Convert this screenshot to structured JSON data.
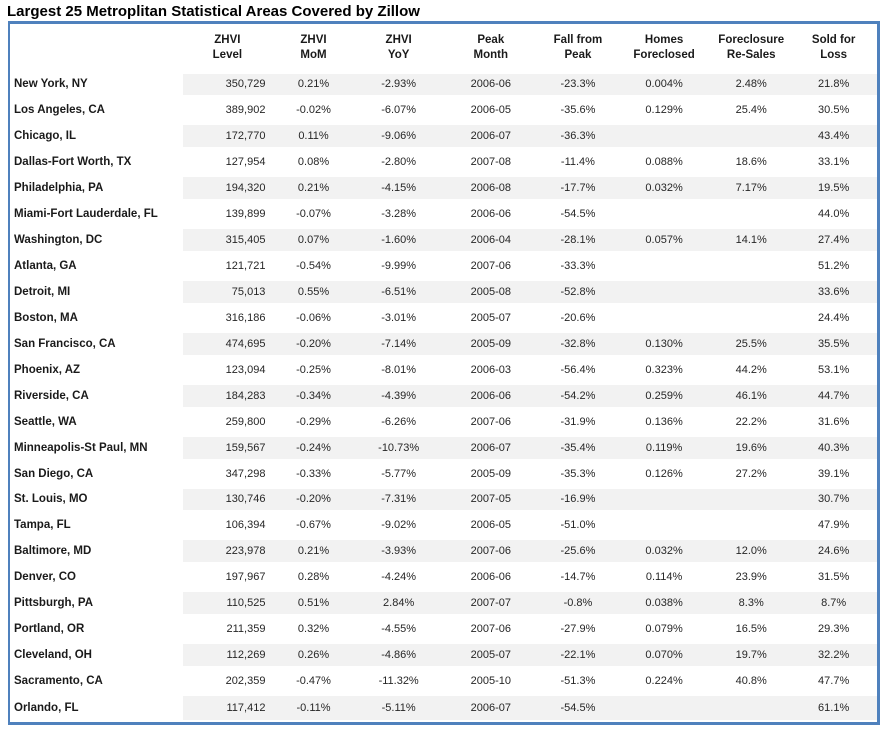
{
  "title": "Largest 25 Metroplitan Statistical Areas Covered by Zillow",
  "colors": {
    "border": "#4f81bd",
    "stripe": "#f2f2f2",
    "title_text": "#000000",
    "header_text": "#1a1a1a",
    "data_text": "#262626"
  },
  "chart_data": {
    "type": "table",
    "title": "Largest 25 Metroplitan Statistical Areas Covered by Zillow",
    "columns": [
      {
        "key": "metro",
        "label_lines": [
          ""
        ]
      },
      {
        "key": "zhvi_level",
        "label_lines": [
          "ZHVI",
          "Level"
        ]
      },
      {
        "key": "zhvi_mom",
        "label_lines": [
          "ZHVI",
          "MoM"
        ]
      },
      {
        "key": "zhvi_yoy",
        "label_lines": [
          "ZHVI",
          "YoY"
        ]
      },
      {
        "key": "peak_month",
        "label_lines": [
          "Peak",
          "Month"
        ]
      },
      {
        "key": "fall_from_peak",
        "label_lines": [
          "Fall from Peak"
        ]
      },
      {
        "key": "homes_foreclosed",
        "label_lines": [
          "Homes",
          "Foreclosed"
        ]
      },
      {
        "key": "foreclosure_resales",
        "label_lines": [
          "Foreclosure",
          "Re-Sales"
        ]
      },
      {
        "key": "sold_for_loss",
        "label_lines": [
          "Sold for",
          "Loss"
        ]
      }
    ],
    "rows": [
      {
        "metro": "New York, NY",
        "zhvi_level": "350,729",
        "zhvi_mom": "0.21%",
        "zhvi_yoy": "-2.93%",
        "peak_month": "2006-06",
        "fall_from_peak": "-23.3%",
        "homes_foreclosed": "0.004%",
        "foreclosure_resales": "2.48%",
        "sold_for_loss": "21.8%"
      },
      {
        "metro": "Los Angeles, CA",
        "zhvi_level": "389,902",
        "zhvi_mom": "-0.02%",
        "zhvi_yoy": "-6.07%",
        "peak_month": "2006-05",
        "fall_from_peak": "-35.6%",
        "homes_foreclosed": "0.129%",
        "foreclosure_resales": "25.4%",
        "sold_for_loss": "30.5%"
      },
      {
        "metro": "Chicago, IL",
        "zhvi_level": "172,770",
        "zhvi_mom": "0.11%",
        "zhvi_yoy": "-9.06%",
        "peak_month": "2006-07",
        "fall_from_peak": "-36.3%",
        "homes_foreclosed": "",
        "foreclosure_resales": "",
        "sold_for_loss": "43.4%"
      },
      {
        "metro": "Dallas-Fort Worth, TX",
        "zhvi_level": "127,954",
        "zhvi_mom": "0.08%",
        "zhvi_yoy": "-2.80%",
        "peak_month": "2007-08",
        "fall_from_peak": "-11.4%",
        "homes_foreclosed": "0.088%",
        "foreclosure_resales": "18.6%",
        "sold_for_loss": "33.1%"
      },
      {
        "metro": "Philadelphia, PA",
        "zhvi_level": "194,320",
        "zhvi_mom": "0.21%",
        "zhvi_yoy": "-4.15%",
        "peak_month": "2006-08",
        "fall_from_peak": "-17.7%",
        "homes_foreclosed": "0.032%",
        "foreclosure_resales": "7.17%",
        "sold_for_loss": "19.5%"
      },
      {
        "metro": "Miami-Fort Lauderdale, FL",
        "zhvi_level": "139,899",
        "zhvi_mom": "-0.07%",
        "zhvi_yoy": "-3.28%",
        "peak_month": "2006-06",
        "fall_from_peak": "-54.5%",
        "homes_foreclosed": "",
        "foreclosure_resales": "",
        "sold_for_loss": "44.0%"
      },
      {
        "metro": "Washington, DC",
        "zhvi_level": "315,405",
        "zhvi_mom": "0.07%",
        "zhvi_yoy": "-1.60%",
        "peak_month": "2006-04",
        "fall_from_peak": "-28.1%",
        "homes_foreclosed": "0.057%",
        "foreclosure_resales": "14.1%",
        "sold_for_loss": "27.4%"
      },
      {
        "metro": "Atlanta, GA",
        "zhvi_level": "121,721",
        "zhvi_mom": "-0.54%",
        "zhvi_yoy": "-9.99%",
        "peak_month": "2007-06",
        "fall_from_peak": "-33.3%",
        "homes_foreclosed": "",
        "foreclosure_resales": "",
        "sold_for_loss": "51.2%"
      },
      {
        "metro": "Detroit, MI",
        "zhvi_level": "75,013",
        "zhvi_mom": "0.55%",
        "zhvi_yoy": "-6.51%",
        "peak_month": "2005-08",
        "fall_from_peak": "-52.8%",
        "homes_foreclosed": "",
        "foreclosure_resales": "",
        "sold_for_loss": "33.6%"
      },
      {
        "metro": "Boston, MA",
        "zhvi_level": "316,186",
        "zhvi_mom": "-0.06%",
        "zhvi_yoy": "-3.01%",
        "peak_month": "2005-07",
        "fall_from_peak": "-20.6%",
        "homes_foreclosed": "",
        "foreclosure_resales": "",
        "sold_for_loss": "24.4%"
      },
      {
        "metro": "San Francisco, CA",
        "zhvi_level": "474,695",
        "zhvi_mom": "-0.20%",
        "zhvi_yoy": "-7.14%",
        "peak_month": "2005-09",
        "fall_from_peak": "-32.8%",
        "homes_foreclosed": "0.130%",
        "foreclosure_resales": "25.5%",
        "sold_for_loss": "35.5%"
      },
      {
        "metro": "Phoenix, AZ",
        "zhvi_level": "123,094",
        "zhvi_mom": "-0.25%",
        "zhvi_yoy": "-8.01%",
        "peak_month": "2006-03",
        "fall_from_peak": "-56.4%",
        "homes_foreclosed": "0.323%",
        "foreclosure_resales": "44.2%",
        "sold_for_loss": "53.1%"
      },
      {
        "metro": "Riverside, CA",
        "zhvi_level": "184,283",
        "zhvi_mom": "-0.34%",
        "zhvi_yoy": "-4.39%",
        "peak_month": "2006-06",
        "fall_from_peak": "-54.2%",
        "homes_foreclosed": "0.259%",
        "foreclosure_resales": "46.1%",
        "sold_for_loss": "44.7%"
      },
      {
        "metro": "Seattle, WA",
        "zhvi_level": "259,800",
        "zhvi_mom": "-0.29%",
        "zhvi_yoy": "-6.26%",
        "peak_month": "2007-06",
        "fall_from_peak": "-31.9%",
        "homes_foreclosed": "0.136%",
        "foreclosure_resales": "22.2%",
        "sold_for_loss": "31.6%"
      },
      {
        "metro": "Minneapolis-St Paul, MN",
        "zhvi_level": "159,567",
        "zhvi_mom": "-0.24%",
        "zhvi_yoy": "-10.73%",
        "peak_month": "2006-07",
        "fall_from_peak": "-35.4%",
        "homes_foreclosed": "0.119%",
        "foreclosure_resales": "19.6%",
        "sold_for_loss": "40.3%"
      },
      {
        "metro": "San Diego, CA",
        "zhvi_level": "347,298",
        "zhvi_mom": "-0.33%",
        "zhvi_yoy": "-5.77%",
        "peak_month": "2005-09",
        "fall_from_peak": "-35.3%",
        "homes_foreclosed": "0.126%",
        "foreclosure_resales": "27.2%",
        "sold_for_loss": "39.1%"
      },
      {
        "metro": "St. Louis, MO",
        "zhvi_level": "130,746",
        "zhvi_mom": "-0.20%",
        "zhvi_yoy": "-7.31%",
        "peak_month": "2007-05",
        "fall_from_peak": "-16.9%",
        "homes_foreclosed": "",
        "foreclosure_resales": "",
        "sold_for_loss": "30.7%"
      },
      {
        "metro": "Tampa, FL",
        "zhvi_level": "106,394",
        "zhvi_mom": "-0.67%",
        "zhvi_yoy": "-9.02%",
        "peak_month": "2006-05",
        "fall_from_peak": "-51.0%",
        "homes_foreclosed": "",
        "foreclosure_resales": "",
        "sold_for_loss": "47.9%"
      },
      {
        "metro": "Baltimore, MD",
        "zhvi_level": "223,978",
        "zhvi_mom": "0.21%",
        "zhvi_yoy": "-3.93%",
        "peak_month": "2007-06",
        "fall_from_peak": "-25.6%",
        "homes_foreclosed": "0.032%",
        "foreclosure_resales": "12.0%",
        "sold_for_loss": "24.6%"
      },
      {
        "metro": "Denver, CO",
        "zhvi_level": "197,967",
        "zhvi_mom": "0.28%",
        "zhvi_yoy": "-4.24%",
        "peak_month": "2006-06",
        "fall_from_peak": "-14.7%",
        "homes_foreclosed": "0.114%",
        "foreclosure_resales": "23.9%",
        "sold_for_loss": "31.5%"
      },
      {
        "metro": "Pittsburgh, PA",
        "zhvi_level": "110,525",
        "zhvi_mom": "0.51%",
        "zhvi_yoy": "2.84%",
        "peak_month": "2007-07",
        "fall_from_peak": "-0.8%",
        "homes_foreclosed": "0.038%",
        "foreclosure_resales": "8.3%",
        "sold_for_loss": "8.7%"
      },
      {
        "metro": "Portland, OR",
        "zhvi_level": "211,359",
        "zhvi_mom": "0.32%",
        "zhvi_yoy": "-4.55%",
        "peak_month": "2007-06",
        "fall_from_peak": "-27.9%",
        "homes_foreclosed": "0.079%",
        "foreclosure_resales": "16.5%",
        "sold_for_loss": "29.3%"
      },
      {
        "metro": "Cleveland, OH",
        "zhvi_level": "112,269",
        "zhvi_mom": "0.26%",
        "zhvi_yoy": "-4.86%",
        "peak_month": "2005-07",
        "fall_from_peak": "-22.1%",
        "homes_foreclosed": "0.070%",
        "foreclosure_resales": "19.7%",
        "sold_for_loss": "32.2%"
      },
      {
        "metro": "Sacramento, CA",
        "zhvi_level": "202,359",
        "zhvi_mom": "-0.47%",
        "zhvi_yoy": "-11.32%",
        "peak_month": "2005-10",
        "fall_from_peak": "-51.3%",
        "homes_foreclosed": "0.224%",
        "foreclosure_resales": "40.8%",
        "sold_for_loss": "47.7%"
      },
      {
        "metro": "Orlando, FL",
        "zhvi_level": "117,412",
        "zhvi_mom": "-0.11%",
        "zhvi_yoy": "-5.11%",
        "peak_month": "2006-07",
        "fall_from_peak": "-54.5%",
        "homes_foreclosed": "",
        "foreclosure_resales": "",
        "sold_for_loss": "61.1%"
      }
    ]
  }
}
